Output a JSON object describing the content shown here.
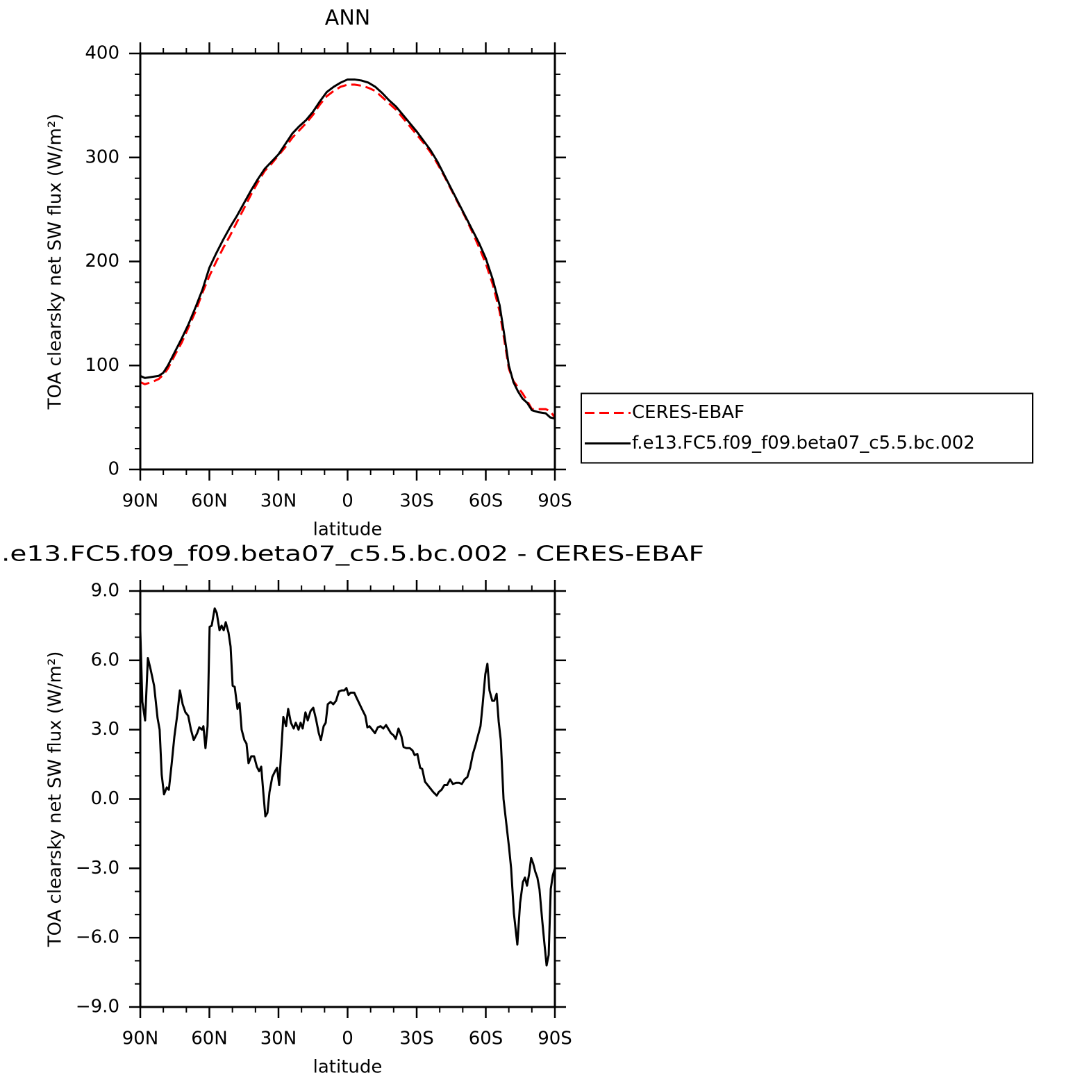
{
  "chart_data": [
    {
      "type": "line",
      "title": "ANN",
      "xlabel": "latitude",
      "ylabel": "TOA clearsky net SW flux (W/m²)",
      "xlim": [
        90,
        -90
      ],
      "ylim": [
        0,
        400
      ],
      "xticks": [
        {
          "value": 90,
          "label": "90N"
        },
        {
          "value": 60,
          "label": "60N"
        },
        {
          "value": 30,
          "label": "30N"
        },
        0,
        {
          "value": -30,
          "label": "30S"
        },
        {
          "value": -60,
          "label": "60S"
        },
        {
          "value": -90,
          "label": "90S"
        }
      ],
      "xminorticks": [
        80,
        70,
        50,
        40,
        20,
        10,
        -10,
        -20,
        -40,
        -50,
        -70,
        -80
      ],
      "yticks": [
        0,
        100,
        200,
        300,
        400
      ],
      "yminorticks": [
        20,
        40,
        60,
        80,
        120,
        140,
        160,
        180,
        220,
        240,
        260,
        280,
        320,
        340,
        360,
        380
      ],
      "legend": "right",
      "x": [
        90,
        88,
        85,
        82,
        80,
        78,
        75,
        72,
        69,
        66,
        63,
        60,
        57,
        54,
        51,
        48,
        45,
        42,
        39,
        36,
        33,
        30,
        27,
        24,
        21,
        18,
        15,
        12,
        9,
        6,
        3,
        0,
        -3,
        -6,
        -9,
        -12,
        -15,
        -18,
        -21,
        -24,
        -27,
        -30,
        -33,
        -36,
        -39,
        -42,
        -45,
        -48,
        -51,
        -54,
        -57,
        -60,
        -63,
        -66,
        -68,
        -70,
        -72,
        -74,
        -76,
        -78,
        -80,
        -83,
        -86,
        -88,
        -90
      ],
      "series": [
        {
          "name": "CERES-EBAF",
          "color": "#ff0000",
          "style": "dashed",
          "values": [
            84,
            82,
            84,
            87,
            91,
            97,
            110,
            122,
            137,
            152,
            170,
            186,
            200,
            213,
            225,
            238,
            251,
            264,
            276,
            287,
            294,
            302,
            310,
            319,
            326,
            333,
            341,
            351,
            359,
            364,
            368,
            370,
            370,
            369,
            367,
            364,
            358,
            352,
            346,
            338,
            330,
            322,
            314,
            305,
            294,
            282,
            269,
            256,
            243,
            229,
            214,
            198,
            178,
            152,
            125,
            97,
            85,
            79,
            73,
            66,
            58,
            58,
            58,
            56,
            50
          ]
        },
        {
          "name": "f.e13.FC5.f09_f09.beta07_c5.5.bc.002",
          "color": "#000000",
          "style": "solid",
          "values": [
            90,
            88,
            89,
            90,
            93,
            100,
            113,
            126,
            140,
            156,
            173,
            194,
            208,
            221,
            233,
            244,
            256,
            268,
            279,
            289,
            296,
            303,
            313,
            323,
            330,
            336,
            344,
            354,
            363,
            368,
            372,
            375,
            375,
            374,
            372,
            368,
            362,
            355,
            349,
            341,
            333,
            325,
            316,
            307,
            296,
            283,
            270,
            257,
            244,
            231,
            218,
            203,
            183,
            158,
            130,
            100,
            84,
            75,
            68,
            64,
            57,
            55,
            54,
            50,
            49
          ]
        }
      ]
    },
    {
      "type": "line",
      "title": ".e13.FC5.f09_f09.beta07_c5.5.bc.002 - CERES-EBAF",
      "xlabel": "latitude",
      "ylabel": "TOA clearsky net SW flux (W/m²)",
      "xlim": [
        90,
        -90
      ],
      "ylim": [
        -9,
        9
      ],
      "xticks": [
        {
          "value": 90,
          "label": "90N"
        },
        {
          "value": 60,
          "label": "60N"
        },
        {
          "value": 30,
          "label": "30N"
        },
        0,
        {
          "value": -30,
          "label": "30S"
        },
        {
          "value": -60,
          "label": "60S"
        },
        {
          "value": -90,
          "label": "90S"
        }
      ],
      "xminorticks": [
        80,
        70,
        50,
        40,
        20,
        10,
        -10,
        -20,
        -40,
        -50,
        -70,
        -80
      ],
      "yticks": [
        {
          "value": -9,
          "label": "−9.0"
        },
        {
          "value": -6,
          "label": "−6.0"
        },
        {
          "value": -3,
          "label": "−3.0"
        },
        {
          "value": 0,
          "label": "0.0"
        },
        {
          "value": 3,
          "label": "3.0"
        },
        {
          "value": 6,
          "label": "6.0"
        },
        {
          "value": 9,
          "label": "9.0"
        }
      ],
      "yminorticks": [
        -8,
        -7,
        -5,
        -4,
        -2,
        -1,
        1,
        2,
        4,
        5,
        7,
        8
      ],
      "color": "#000000",
      "x": [
        90,
        89.1,
        87.9,
        86.7,
        85.5,
        84,
        82.5,
        81.6,
        80.7,
        79.7,
        78.5,
        77.6,
        76.4,
        75.2,
        74,
        72.8,
        71.6,
        70.4,
        69.2,
        68,
        66.8,
        65.3,
        64.4,
        63.2,
        62.6,
        61.7,
        60.8,
        59.9,
        59,
        57.7,
        56.8,
        55.6,
        54.7,
        53.8,
        52.9,
        51.7,
        50.8,
        49.9,
        49,
        47.8,
        46.9,
        46,
        44.8,
        43.9,
        43,
        41.8,
        40.6,
        39.4,
        38.4,
        37.5,
        36.6,
        35.7,
        34.8,
        33.9,
        32.7,
        31.5,
        30.6,
        29.7,
        28.8,
        27.9,
        26.7,
        25.8,
        24.6,
        23.4,
        22.5,
        21.3,
        20.4,
        19.5,
        18.3,
        17.3,
        16.1,
        14.9,
        13.7,
        12.5,
        11.6,
        10.4,
        9.5,
        8.6,
        7.4,
        6.2,
        5,
        3.8,
        2.6,
        1.4,
        0.5,
        -0.4,
        -1.3,
        -2.9,
        -3.8,
        -5,
        -6.2,
        -7.7,
        -8.6,
        -9.5,
        -10.7,
        -11.9,
        -13.1,
        -14.3,
        -15.5,
        -16.7,
        -17.9,
        -18.8,
        -20,
        -20.9,
        -22.1,
        -23.4,
        -24.3,
        -25.5,
        -27,
        -28.2,
        -29.1,
        -30.3,
        -31.5,
        -32.4,
        -33.6,
        -34.8,
        -36,
        -37.2,
        -38.7,
        -39.6,
        -40.8,
        -42,
        -43.2,
        -44.5,
        -45.7,
        -47.2,
        -48.4,
        -49.6,
        -50.8,
        -52,
        -53.2,
        -54.4,
        -55.6,
        -56.5,
        -57.7,
        -58.6,
        -59.8,
        -60.7,
        -61.6,
        -62.8,
        -63.7,
        -64.7,
        -65.6,
        -66.5,
        -67.7,
        -68.9,
        -70.1,
        -71,
        -72.2,
        -73.7,
        -74.9,
        -76.1,
        -77,
        -77.9,
        -78.8,
        -79.7,
        -80.6,
        -81.5,
        -82.4,
        -83.3,
        -84.5,
        -85.5,
        -86.4,
        -87.3,
        -88.2,
        -89.1,
        -90
      ],
      "values": [
        7.3,
        4.2,
        3.4,
        6.1,
        5.6,
        4.9,
        3.5,
        3.0,
        1.05,
        0.2,
        0.5,
        0.4,
        1.5,
        2.7,
        3.6,
        4.7,
        4.1,
        3.75,
        3.6,
        3.0,
        2.55,
        2.85,
        3.1,
        3.0,
        3.15,
        2.2,
        3.15,
        7.45,
        7.5,
        8.25,
        8.05,
        7.3,
        7.5,
        7.3,
        7.65,
        7.2,
        6.6,
        4.9,
        4.85,
        3.9,
        4.15,
        3.0,
        2.55,
        2.4,
        1.55,
        1.85,
        1.85,
        1.4,
        1.2,
        1.4,
        0.3,
        -0.75,
        -0.6,
        0.3,
        0.95,
        1.2,
        1.35,
        0.6,
        2.1,
        3.55,
        3.15,
        3.9,
        3.3,
        3.05,
        3.3,
        3.0,
        3.3,
        3.05,
        3.75,
        3.4,
        3.8,
        3.95,
        3.45,
        2.85,
        2.55,
        3.15,
        3.3,
        4.1,
        4.2,
        4.1,
        4.25,
        4.65,
        4.7,
        4.7,
        4.8,
        4.5,
        4.6,
        4.6,
        4.4,
        4.15,
        3.9,
        3.6,
        3.1,
        3.15,
        3.0,
        2.85,
        3.1,
        3.15,
        3.05,
        3.2,
        3.0,
        2.85,
        2.75,
        2.6,
        3.05,
        2.7,
        2.25,
        2.2,
        2.2,
        2.1,
        1.9,
        1.95,
        1.35,
        1.3,
        0.75,
        0.6,
        0.45,
        0.3,
        0.15,
        0.3,
        0.4,
        0.6,
        0.6,
        0.85,
        0.65,
        0.7,
        0.7,
        0.65,
        0.85,
        0.95,
        1.35,
        1.95,
        2.35,
        2.7,
        3.15,
        4.05,
        5.4,
        5.85,
        4.7,
        4.25,
        4.25,
        4.55,
        3.35,
        2.55,
        0,
        -1.05,
        -2.1,
        -3.0,
        -4.95,
        -6.3,
        -4.5,
        -3.6,
        -3.4,
        -3.75,
        -3.25,
        -2.55,
        -2.8,
        -3.15,
        -3.4,
        -3.9,
        -5.25,
        -6.3,
        -7.2,
        -6.75,
        -3.9,
        -3.3,
        -3.0
      ]
    }
  ]
}
